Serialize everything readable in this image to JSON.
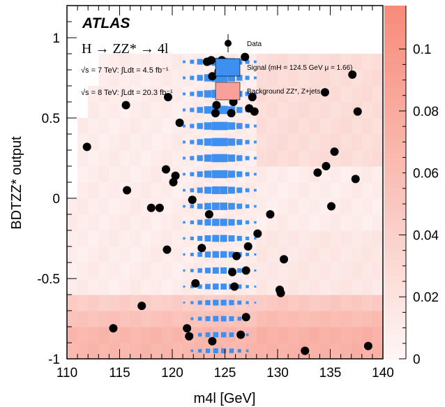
{
  "chart_data": {
    "type": "scatter",
    "experiment_label": "ATLAS",
    "process_label": "H → ZZ* → 4l",
    "lumi_lines": [
      "√s = 7 TeV: ∫Ldt = 4.5 fb⁻¹",
      "√s = 8 TeV: ∫Ldt = 20.3 fb⁻¹"
    ],
    "xlabel": "m4l [GeV]",
    "ylabel": "BDTZZ* output",
    "xlim": [
      110,
      140
    ],
    "ylim": [
      -1,
      1.2
    ],
    "zlim": [
      0,
      0.11
    ],
    "xticks": [
      "110",
      "115",
      "120",
      "125",
      "130",
      "135",
      "140"
    ],
    "yticks": [
      "-1",
      "-0.5",
      "0",
      "0.5",
      "1"
    ],
    "zticks": [
      "0",
      "0.02",
      "0.04",
      "0.06",
      "0.08",
      "0.1"
    ],
    "legend": {
      "position": "top-right",
      "entries": [
        {
          "label": "Data",
          "marker": "point"
        },
        {
          "label": "Signal (mH = 124.5 GeV μ = 1.66)",
          "color": "#3d8ff0"
        },
        {
          "label": "Background ZZ*, Z+jets",
          "color": "#f9a09a"
        }
      ]
    },
    "colors": {
      "signal": "#3d8ff0",
      "background_max": "#f78a79",
      "background_min": "#fdf5f4",
      "data": "#000000"
    },
    "data_points": [
      {
        "x": 111.9,
        "y": 0.32
      },
      {
        "x": 114.4,
        "y": -0.81
      },
      {
        "x": 115.6,
        "y": 0.58
      },
      {
        "x": 115.7,
        "y": 0.05
      },
      {
        "x": 117.1,
        "y": -0.67
      },
      {
        "x": 118.0,
        "y": -0.06
      },
      {
        "x": 118.8,
        "y": -0.06
      },
      {
        "x": 119.4,
        "y": 0.18
      },
      {
        "x": 119.5,
        "y": -0.32
      },
      {
        "x": 119.6,
        "y": 0.63
      },
      {
        "x": 120.1,
        "y": 0.1
      },
      {
        "x": 120.3,
        "y": 0.14
      },
      {
        "x": 120.7,
        "y": 0.47
      },
      {
        "x": 121.4,
        "y": -0.81
      },
      {
        "x": 121.6,
        "y": -0.86
      },
      {
        "x": 121.9,
        "y": -0.01
      },
      {
        "x": 122.2,
        "y": -0.53
      },
      {
        "x": 122.8,
        "y": -0.31
      },
      {
        "x": 123.3,
        "y": 0.85
      },
      {
        "x": 123.5,
        "y": -0.1
      },
      {
        "x": 123.7,
        "y": 0.86
      },
      {
        "x": 123.8,
        "y": 0.76
      },
      {
        "x": 123.8,
        "y": -0.89
      },
      {
        "x": 124.1,
        "y": 0.53
      },
      {
        "x": 124.2,
        "y": 0.58
      },
      {
        "x": 124.4,
        "y": 0.79
      },
      {
        "x": 124.7,
        "y": 0.86
      },
      {
        "x": 125.5,
        "y": 0.66
      },
      {
        "x": 125.6,
        "y": 0.53
      },
      {
        "x": 125.7,
        "y": -0.46
      },
      {
        "x": 125.8,
        "y": 0.6
      },
      {
        "x": 125.9,
        "y": -0.55
      },
      {
        "x": 126.1,
        "y": -0.36
      },
      {
        "x": 126.5,
        "y": -0.85
      },
      {
        "x": 126.9,
        "y": 0.88
      },
      {
        "x": 127.0,
        "y": -0.45
      },
      {
        "x": 127.0,
        "y": -0.74
      },
      {
        "x": 127.2,
        "y": -0.3
      },
      {
        "x": 127.3,
        "y": 0.56
      },
      {
        "x": 127.6,
        "y": 0.63
      },
      {
        "x": 127.8,
        "y": 0.54
      },
      {
        "x": 128.1,
        "y": -0.22
      },
      {
        "x": 129.3,
        "y": -0.1
      },
      {
        "x": 130.2,
        "y": -0.57
      },
      {
        "x": 130.3,
        "y": -0.59
      },
      {
        "x": 130.6,
        "y": -0.38
      },
      {
        "x": 132.6,
        "y": -0.95
      },
      {
        "x": 133.8,
        "y": 0.16
      },
      {
        "x": 134.5,
        "y": 0.66
      },
      {
        "x": 134.6,
        "y": 0.2
      },
      {
        "x": 135.1,
        "y": -0.05
      },
      {
        "x": 135.4,
        "y": 0.29
      },
      {
        "x": 137.1,
        "y": 0.77
      },
      {
        "x": 137.4,
        "y": 0.12
      },
      {
        "x": 137.6,
        "y": 0.54
      },
      {
        "x": 138.6,
        "y": -0.92
      }
    ],
    "background_hist": {
      "note_bins": "x bins 110-140 step 1 GeV, y bins -1 to 1 step 0.1",
      "x_edges": [
        110,
        140,
        1
      ],
      "y_edges": [
        -1,
        1,
        0.1
      ]
    },
    "signal_hist": {
      "x_range": [
        120,
        129
      ],
      "y_range": [
        -1,
        1
      ],
      "peak_x": 124.5,
      "peak_y": 0.5
    }
  }
}
